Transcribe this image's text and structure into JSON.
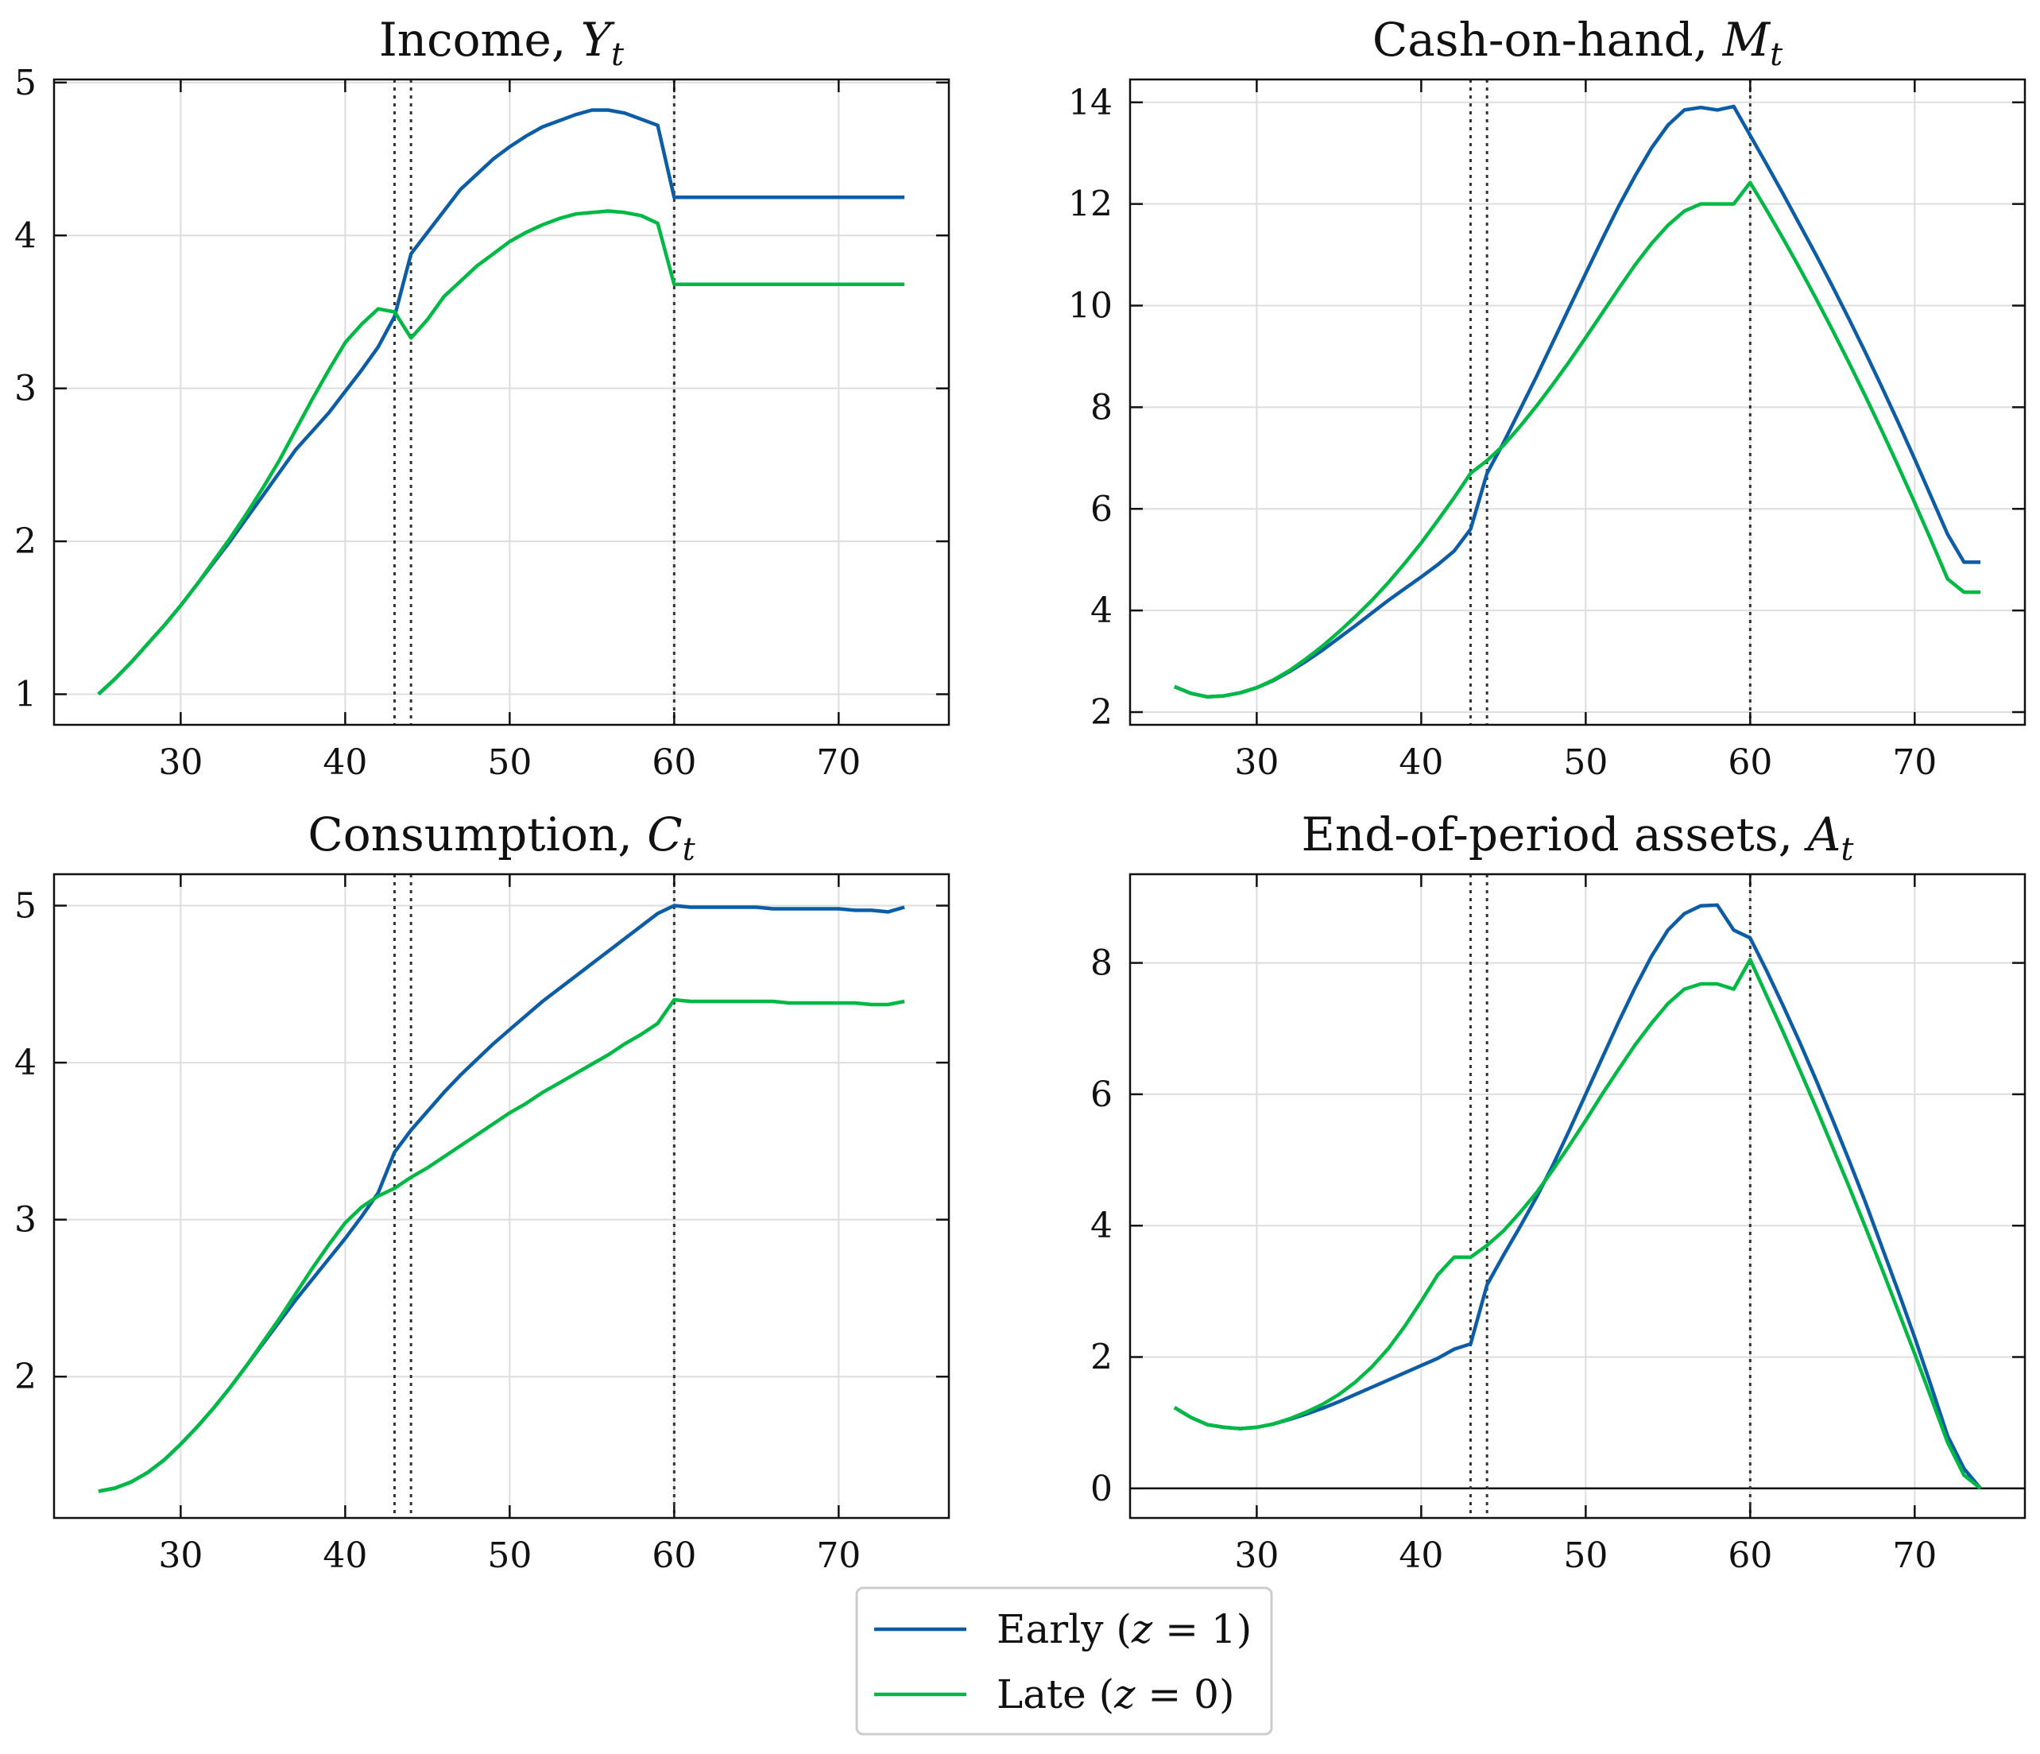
{
  "chart_data": [
    {
      "type": "line",
      "title": "Income, ",
      "title_symbol": "Y",
      "title_subscript": "t",
      "xlim": [
        22.3,
        76.7
      ],
      "ylim": [
        0.8,
        5.02
      ],
      "xticks": [
        30,
        40,
        50,
        60,
        70
      ],
      "yticks": [
        1,
        2,
        3,
        4,
        5
      ],
      "grid": true,
      "vlines": [
        43,
        44,
        60
      ],
      "hline": null,
      "series": [
        {
          "key": "early",
          "color": "#0C5DA5",
          "x": [
            25,
            26,
            27,
            28,
            29,
            30,
            31,
            32,
            33,
            34,
            35,
            36,
            37,
            38,
            39,
            40,
            41,
            42,
            43,
            44,
            45,
            46,
            47,
            48,
            49,
            50,
            51,
            52,
            53,
            54,
            55,
            56,
            57,
            58,
            59,
            60,
            61,
            62,
            63,
            64,
            65,
            66,
            67,
            68,
            69,
            70,
            71,
            72,
            73,
            74
          ],
          "y": [
            1.0,
            1.1,
            1.21,
            1.33,
            1.45,
            1.58,
            1.72,
            1.86,
            2.0,
            2.15,
            2.3,
            2.45,
            2.6,
            2.72,
            2.84,
            2.98,
            3.12,
            3.27,
            3.47,
            3.88,
            4.02,
            4.16,
            4.3,
            4.4,
            4.5,
            4.58,
            4.65,
            4.71,
            4.75,
            4.79,
            4.82,
            4.82,
            4.8,
            4.76,
            4.72,
            4.25,
            4.25,
            4.25,
            4.25,
            4.25,
            4.25,
            4.25,
            4.25,
            4.25,
            4.25,
            4.25,
            4.25,
            4.25,
            4.25,
            4.25
          ]
        },
        {
          "key": "late",
          "color": "#00B945",
          "x": [
            25,
            26,
            27,
            28,
            29,
            30,
            31,
            32,
            33,
            34,
            35,
            36,
            37,
            38,
            39,
            40,
            41,
            42,
            43,
            44,
            45,
            46,
            47,
            48,
            49,
            50,
            51,
            52,
            53,
            54,
            55,
            56,
            57,
            58,
            59,
            60,
            61,
            62,
            63,
            64,
            65,
            66,
            67,
            68,
            69,
            70,
            71,
            72,
            73,
            74
          ],
          "y": [
            1.0,
            1.1,
            1.21,
            1.33,
            1.45,
            1.58,
            1.72,
            1.87,
            2.02,
            2.18,
            2.35,
            2.53,
            2.73,
            2.93,
            3.12,
            3.3,
            3.42,
            3.52,
            3.5,
            3.33,
            3.45,
            3.6,
            3.7,
            3.8,
            3.88,
            3.96,
            4.02,
            4.07,
            4.11,
            4.14,
            4.15,
            4.16,
            4.15,
            4.13,
            4.08,
            3.68,
            3.68,
            3.68,
            3.68,
            3.68,
            3.68,
            3.68,
            3.68,
            3.68,
            3.68,
            3.68,
            3.68,
            3.68,
            3.68,
            3.68
          ]
        }
      ]
    },
    {
      "type": "line",
      "title": "Cash-on-hand, ",
      "title_symbol": "M",
      "title_subscript": "t",
      "xlim": [
        22.3,
        76.7
      ],
      "ylim": [
        1.75,
        14.45
      ],
      "xticks": [
        30,
        40,
        50,
        60,
        70
      ],
      "yticks": [
        2,
        4,
        6,
        8,
        10,
        12,
        14
      ],
      "grid": true,
      "vlines": [
        43,
        44,
        60
      ],
      "hline": null,
      "series": [
        {
          "key": "early",
          "color": "#0C5DA5",
          "x": [
            25,
            26,
            27,
            28,
            29,
            30,
            31,
            32,
            33,
            34,
            35,
            36,
            37,
            38,
            39,
            40,
            41,
            42,
            43,
            44,
            45,
            46,
            47,
            48,
            49,
            50,
            51,
            52,
            53,
            54,
            55,
            56,
            57,
            58,
            59,
            60,
            61,
            62,
            63,
            64,
            65,
            66,
            67,
            68,
            69,
            70,
            71,
            72,
            73,
            74
          ],
          "y": [
            2.5,
            2.37,
            2.3,
            2.32,
            2.38,
            2.48,
            2.62,
            2.8,
            3.0,
            3.22,
            3.46,
            3.7,
            3.95,
            4.2,
            4.43,
            4.66,
            4.9,
            5.17,
            5.6,
            6.7,
            7.3,
            7.95,
            8.6,
            9.28,
            9.96,
            10.63,
            11.3,
            11.95,
            12.55,
            13.1,
            13.55,
            13.85,
            13.9,
            13.85,
            13.92,
            13.35,
            12.78,
            12.2,
            11.6,
            11.0,
            10.38,
            9.74,
            9.08,
            8.4,
            7.7,
            6.98,
            6.24,
            5.5,
            4.95,
            4.95
          ]
        },
        {
          "key": "late",
          "color": "#00B945",
          "x": [
            25,
            26,
            27,
            28,
            29,
            30,
            31,
            32,
            33,
            34,
            35,
            36,
            37,
            38,
            39,
            40,
            41,
            42,
            43,
            44,
            45,
            46,
            47,
            48,
            49,
            50,
            51,
            52,
            53,
            54,
            55,
            56,
            57,
            58,
            59,
            60,
            61,
            62,
            63,
            64,
            65,
            66,
            67,
            68,
            69,
            70,
            71,
            72,
            73,
            74
          ],
          "y": [
            2.5,
            2.37,
            2.3,
            2.32,
            2.38,
            2.48,
            2.63,
            2.82,
            3.05,
            3.3,
            3.58,
            3.88,
            4.2,
            4.55,
            4.93,
            5.33,
            5.77,
            6.22,
            6.7,
            6.95,
            7.25,
            7.62,
            8.02,
            8.45,
            8.9,
            9.37,
            9.85,
            10.33,
            10.8,
            11.22,
            11.58,
            11.86,
            12.0,
            12.0,
            12.0,
            12.42,
            11.88,
            11.32,
            10.74,
            10.14,
            9.52,
            8.88,
            8.22,
            7.54,
            6.84,
            6.12,
            5.38,
            4.62,
            4.36,
            4.36
          ]
        }
      ]
    },
    {
      "type": "line",
      "title": "Consumption, ",
      "title_symbol": "C",
      "title_subscript": "t",
      "xlim": [
        22.3,
        76.7
      ],
      "ylim": [
        1.1,
        5.2
      ],
      "xticks": [
        30,
        40,
        50,
        60,
        70
      ],
      "yticks": [
        2,
        3,
        4,
        5
      ],
      "grid": true,
      "vlines": [
        43,
        44,
        60
      ],
      "hline": null,
      "series": [
        {
          "key": "early",
          "color": "#0C5DA5",
          "x": [
            25,
            26,
            27,
            28,
            29,
            30,
            31,
            32,
            33,
            34,
            35,
            36,
            37,
            38,
            39,
            40,
            41,
            42,
            43,
            44,
            45,
            46,
            47,
            48,
            49,
            50,
            51,
            52,
            53,
            54,
            55,
            56,
            57,
            58,
            59,
            60,
            61,
            62,
            63,
            64,
            65,
            66,
            67,
            68,
            69,
            70,
            71,
            72,
            73,
            74
          ],
          "y": [
            1.27,
            1.29,
            1.33,
            1.39,
            1.47,
            1.57,
            1.68,
            1.8,
            1.93,
            2.07,
            2.21,
            2.35,
            2.49,
            2.62,
            2.75,
            2.88,
            3.02,
            3.17,
            3.43,
            3.57,
            3.69,
            3.81,
            3.92,
            4.02,
            4.12,
            4.21,
            4.3,
            4.39,
            4.47,
            4.55,
            4.63,
            4.71,
            4.79,
            4.87,
            4.95,
            5.0,
            4.99,
            4.99,
            4.99,
            4.99,
            4.99,
            4.98,
            4.98,
            4.98,
            4.98,
            4.98,
            4.97,
            4.97,
            4.96,
            4.99
          ]
        },
        {
          "key": "late",
          "color": "#00B945",
          "x": [
            25,
            26,
            27,
            28,
            29,
            30,
            31,
            32,
            33,
            34,
            35,
            36,
            37,
            38,
            39,
            40,
            41,
            42,
            43,
            44,
            45,
            46,
            47,
            48,
            49,
            50,
            51,
            52,
            53,
            54,
            55,
            56,
            57,
            58,
            59,
            60,
            61,
            62,
            63,
            64,
            65,
            66,
            67,
            68,
            69,
            70,
            71,
            72,
            73,
            74
          ],
          "y": [
            1.27,
            1.29,
            1.33,
            1.39,
            1.47,
            1.57,
            1.68,
            1.8,
            1.93,
            2.07,
            2.22,
            2.37,
            2.53,
            2.69,
            2.84,
            2.98,
            3.08,
            3.15,
            3.2,
            3.27,
            3.33,
            3.4,
            3.47,
            3.54,
            3.61,
            3.68,
            3.74,
            3.81,
            3.87,
            3.93,
            3.99,
            4.05,
            4.12,
            4.18,
            4.25,
            4.4,
            4.39,
            4.39,
            4.39,
            4.39,
            4.39,
            4.39,
            4.38,
            4.38,
            4.38,
            4.38,
            4.38,
            4.37,
            4.37,
            4.39
          ]
        }
      ]
    },
    {
      "type": "line",
      "title": "End-of-period assets, ",
      "title_symbol": "A",
      "title_subscript": "t",
      "xlim": [
        22.3,
        76.7
      ],
      "ylim": [
        -0.45,
        9.35
      ],
      "xticks": [
        30,
        40,
        50,
        60,
        70
      ],
      "yticks": [
        0,
        2,
        4,
        6,
        8
      ],
      "grid": true,
      "vlines": [
        43,
        44,
        60
      ],
      "hline": 0,
      "series": [
        {
          "key": "early",
          "color": "#0C5DA5",
          "x": [
            25,
            26,
            27,
            28,
            29,
            30,
            31,
            32,
            33,
            34,
            35,
            36,
            37,
            38,
            39,
            40,
            41,
            42,
            43,
            44,
            45,
            46,
            47,
            48,
            49,
            50,
            51,
            52,
            53,
            54,
            55,
            56,
            57,
            58,
            59,
            60,
            61,
            62,
            63,
            64,
            65,
            66,
            67,
            68,
            69,
            70,
            71,
            72,
            73,
            74
          ],
          "y": [
            1.23,
            1.08,
            0.97,
            0.93,
            0.91,
            0.93,
            0.98,
            1.05,
            1.13,
            1.22,
            1.32,
            1.43,
            1.54,
            1.65,
            1.76,
            1.87,
            1.98,
            2.12,
            2.2,
            3.1,
            3.55,
            3.98,
            4.43,
            4.92,
            5.45,
            6.0,
            6.55,
            7.1,
            7.62,
            8.1,
            8.5,
            8.75,
            8.87,
            8.88,
            8.5,
            8.38,
            7.88,
            7.35,
            6.8,
            6.22,
            5.62,
            5.0,
            4.36,
            3.68,
            3.0,
            2.3,
            1.56,
            0.8,
            0.3,
            0.0
          ]
        },
        {
          "key": "late",
          "color": "#00B945",
          "x": [
            25,
            26,
            27,
            28,
            29,
            30,
            31,
            32,
            33,
            34,
            35,
            36,
            37,
            38,
            39,
            40,
            41,
            42,
            43,
            44,
            45,
            46,
            47,
            48,
            49,
            50,
            51,
            52,
            53,
            54,
            55,
            56,
            57,
            58,
            59,
            60,
            61,
            62,
            63,
            64,
            65,
            66,
            67,
            68,
            69,
            70,
            71,
            72,
            73,
            74
          ],
          "y": [
            1.23,
            1.08,
            0.97,
            0.93,
            0.91,
            0.93,
            0.98,
            1.06,
            1.16,
            1.28,
            1.43,
            1.62,
            1.85,
            2.13,
            2.47,
            2.85,
            3.25,
            3.52,
            3.52,
            3.7,
            3.92,
            4.2,
            4.5,
            4.85,
            5.22,
            5.6,
            6.0,
            6.38,
            6.75,
            7.08,
            7.38,
            7.6,
            7.68,
            7.68,
            7.6,
            8.05,
            7.5,
            6.95,
            6.38,
            5.8,
            5.2,
            4.6,
            3.98,
            3.35,
            2.7,
            2.05,
            1.38,
            0.7,
            0.2,
            0.0
          ]
        }
      ]
    }
  ],
  "legend": {
    "placement": "bottom-center",
    "entries": [
      {
        "key": "early",
        "color": "#0C5DA5",
        "text": "Early (",
        "var": "z",
        "rest": " = 1)"
      },
      {
        "key": "late",
        "color": "#00B945",
        "text": "Late (",
        "var": "z",
        "rest": " = 0)"
      }
    ]
  }
}
